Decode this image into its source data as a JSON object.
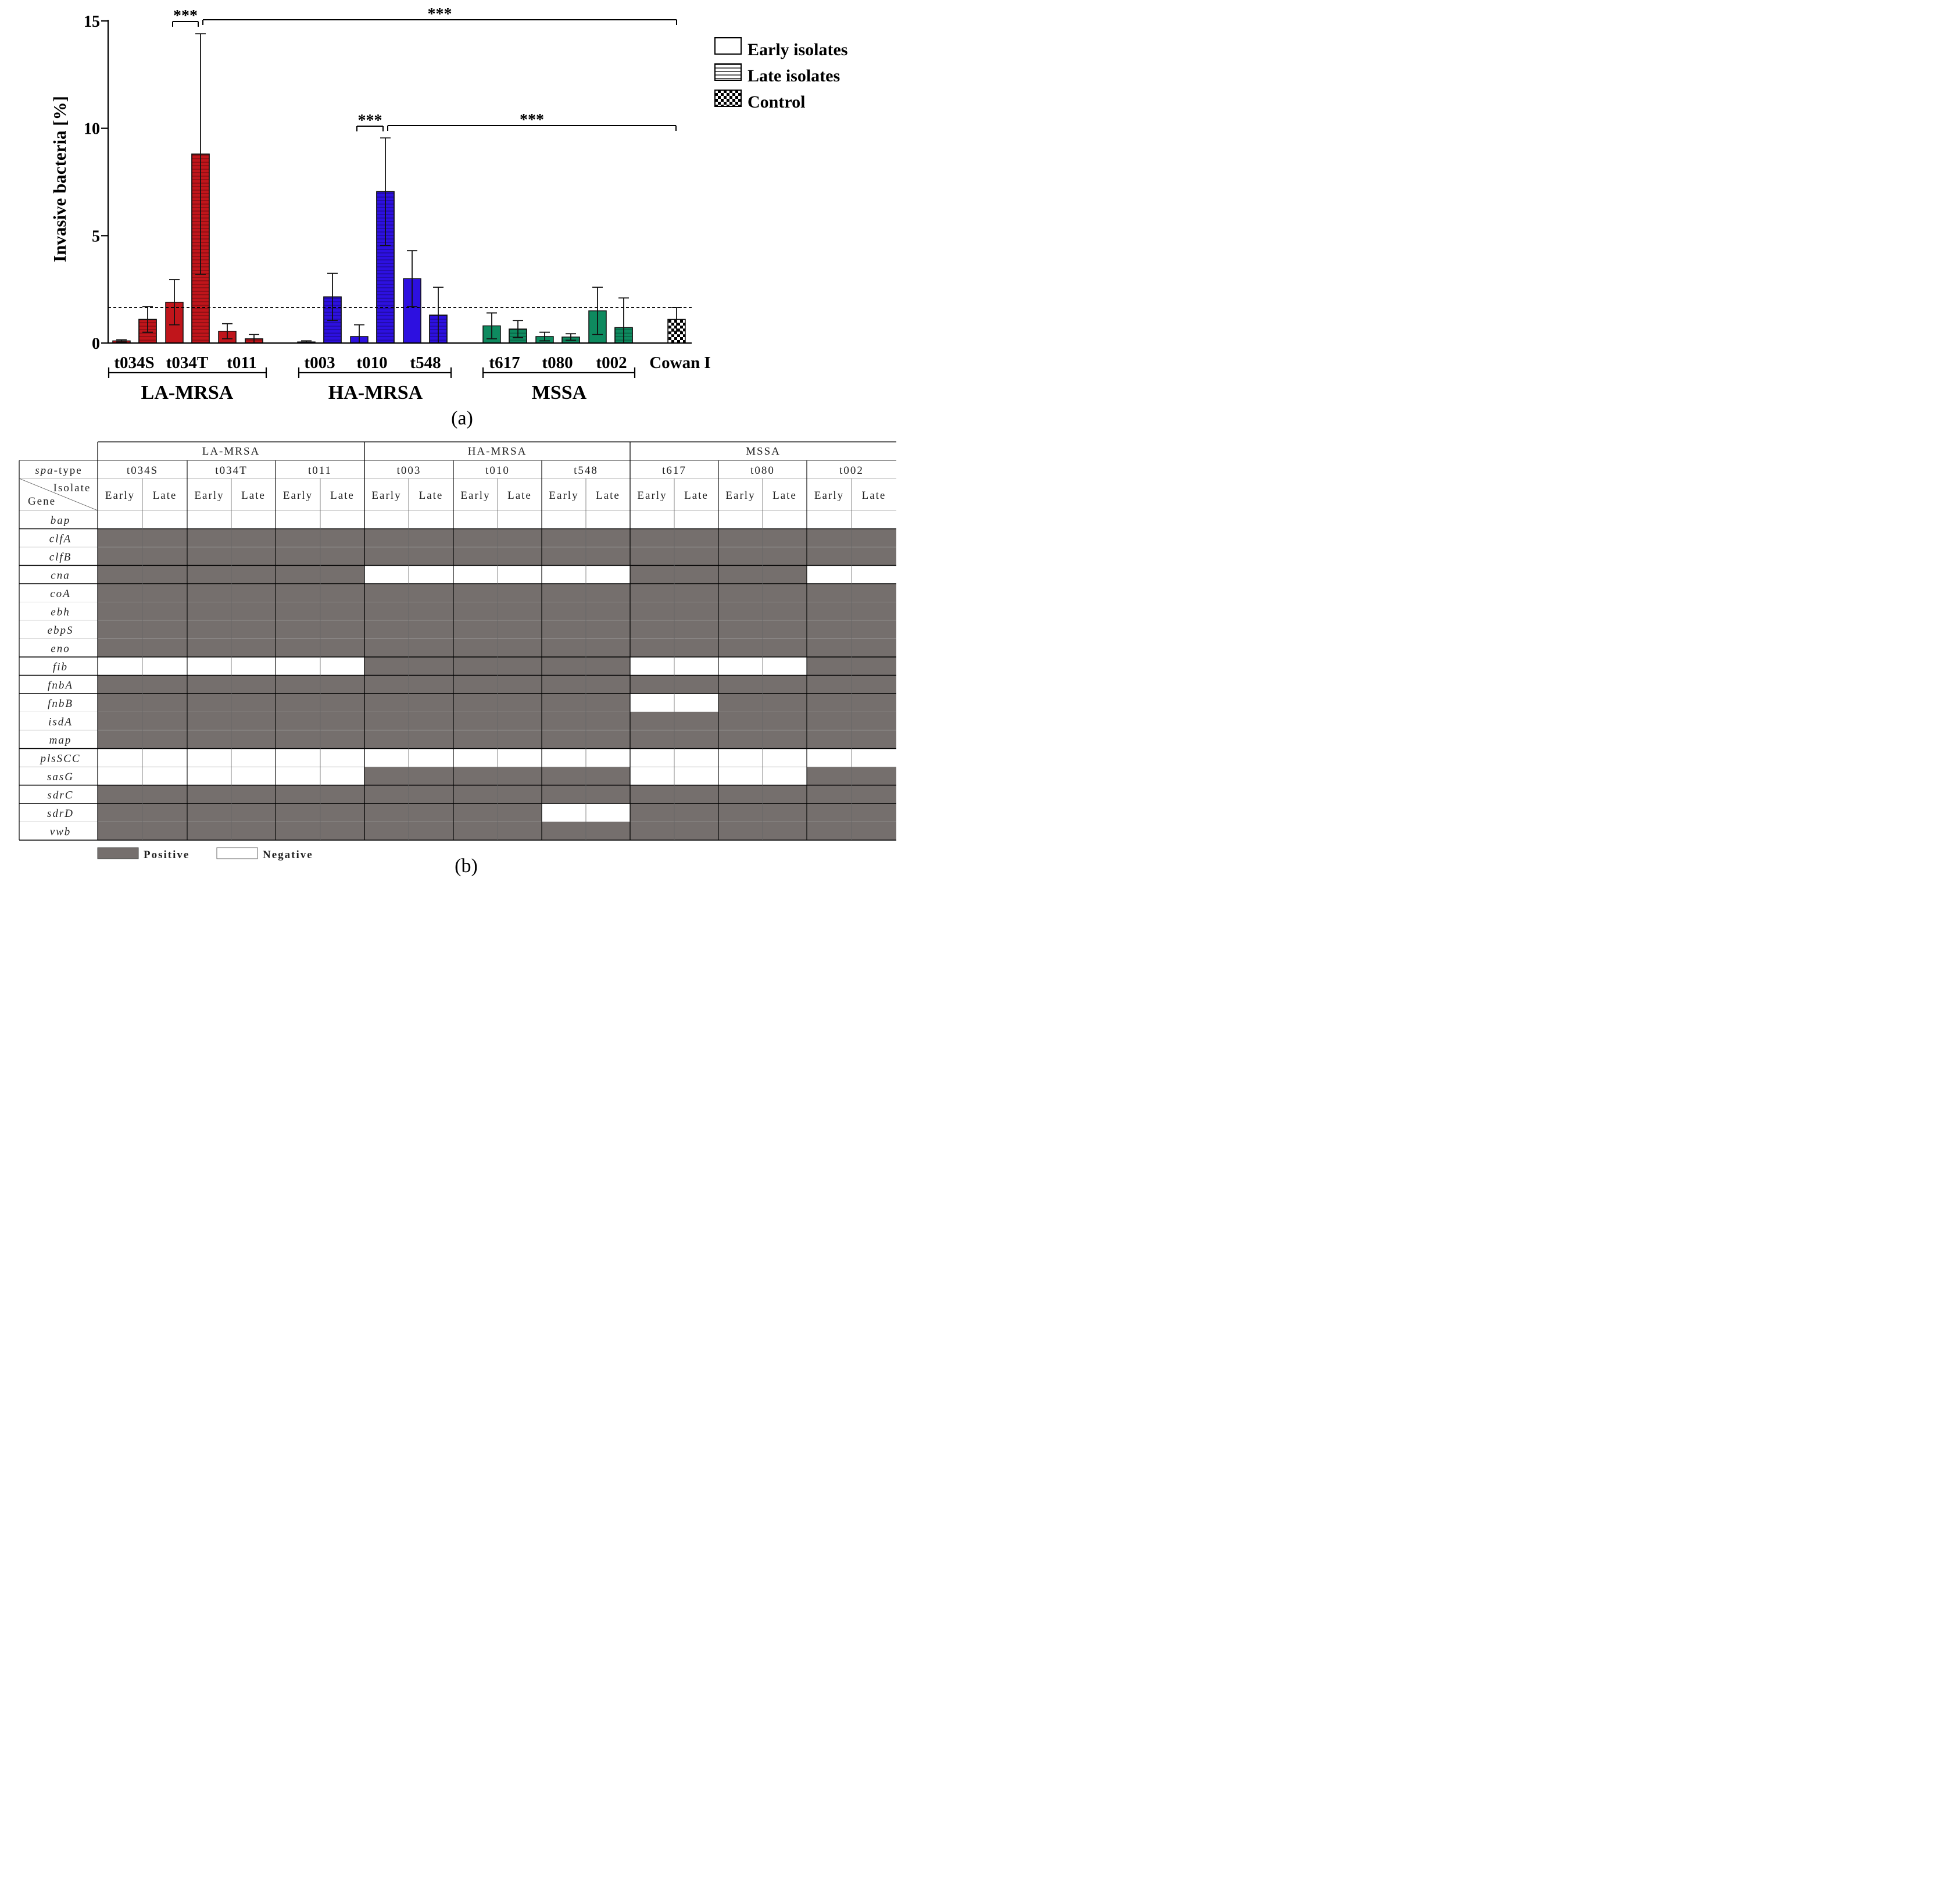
{
  "panel_a": {
    "label": "(a)",
    "ylabel": "Invasive bacteria [%]",
    "yticks": [
      "0",
      "5",
      "10",
      "15"
    ],
    "significance_label": "***",
    "legend": [
      {
        "label": "Early isolates",
        "pattern": "none"
      },
      {
        "label": "Late isolates",
        "pattern": "horizontal-lines"
      },
      {
        "label": "Control",
        "pattern": "checker"
      }
    ],
    "categories": [
      "t034S",
      "t034T",
      "t011",
      "t003",
      "t010",
      "t548",
      "t617",
      "t080",
      "t002",
      "Cowan I"
    ],
    "groups": [
      {
        "name": "LA-MRSA",
        "categories": [
          "t034S",
          "t034T",
          "t011"
        ]
      },
      {
        "name": "HA-MRSA",
        "categories": [
          "t003",
          "t010",
          "t548"
        ]
      },
      {
        "name": "MSSA",
        "categories": [
          "t617",
          "t080",
          "t002"
        ]
      }
    ],
    "colors": {
      "LA-MRSA": "#c0151b",
      "HA-MRSA": "#2d10e0",
      "MSSA": "#0e8a5f",
      "Control": "#ffffff"
    }
  },
  "panel_b": {
    "label": "(b)",
    "groups": [
      "LA-MRSA",
      "HA-MRSA",
      "MSSA"
    ],
    "spa_header": "spa-type",
    "spa_emphasis": "spa",
    "isolate_header": "Isolate",
    "gene_header": "Gene",
    "spa_types": [
      "t034S",
      "t034T",
      "t011",
      "t003",
      "t010",
      "t548",
      "t617",
      "t080",
      "t002"
    ],
    "isolate_labels": [
      "Early",
      "Late"
    ],
    "genes": [
      "bap",
      "clfA",
      "clfB",
      "cna",
      "coA",
      "ebh",
      "ebpS",
      "eno",
      "fib",
      "fnbA",
      "fnbB",
      "isdA",
      "map",
      "plsSCC",
      "sasG",
      "sdrC",
      "sdrD",
      "vwb"
    ],
    "presence": [
      [
        0,
        0,
        0,
        0,
        0,
        0,
        0,
        0,
        0,
        0,
        0,
        0,
        0,
        0,
        0,
        0,
        0,
        0
      ],
      [
        1,
        1,
        1,
        1,
        1,
        1,
        1,
        1,
        1,
        1,
        1,
        1,
        1,
        1,
        1,
        1,
        1,
        1
      ],
      [
        1,
        1,
        1,
        1,
        1,
        1,
        1,
        1,
        1,
        1,
        1,
        1,
        1,
        1,
        1,
        1,
        1,
        1
      ],
      [
        1,
        1,
        1,
        1,
        1,
        1,
        0,
        0,
        0,
        0,
        0,
        0,
        1,
        1,
        1,
        1,
        0,
        0
      ],
      [
        1,
        1,
        1,
        1,
        1,
        1,
        1,
        1,
        1,
        1,
        1,
        1,
        1,
        1,
        1,
        1,
        1,
        1
      ],
      [
        1,
        1,
        1,
        1,
        1,
        1,
        1,
        1,
        1,
        1,
        1,
        1,
        1,
        1,
        1,
        1,
        1,
        1
      ],
      [
        1,
        1,
        1,
        1,
        1,
        1,
        1,
        1,
        1,
        1,
        1,
        1,
        1,
        1,
        1,
        1,
        1,
        1
      ],
      [
        1,
        1,
        1,
        1,
        1,
        1,
        1,
        1,
        1,
        1,
        1,
        1,
        1,
        1,
        1,
        1,
        1,
        1
      ],
      [
        0,
        0,
        0,
        0,
        0,
        0,
        1,
        1,
        1,
        1,
        1,
        1,
        0,
        0,
        0,
        0,
        1,
        1
      ],
      [
        1,
        1,
        1,
        1,
        1,
        1,
        1,
        1,
        1,
        1,
        1,
        1,
        1,
        1,
        1,
        1,
        1,
        1
      ],
      [
        1,
        1,
        1,
        1,
        1,
        1,
        1,
        1,
        1,
        1,
        1,
        1,
        0,
        0,
        1,
        1,
        1,
        1
      ],
      [
        1,
        1,
        1,
        1,
        1,
        1,
        1,
        1,
        1,
        1,
        1,
        1,
        1,
        1,
        1,
        1,
        1,
        1
      ],
      [
        1,
        1,
        1,
        1,
        1,
        1,
        1,
        1,
        1,
        1,
        1,
        1,
        1,
        1,
        1,
        1,
        1,
        1
      ],
      [
        0,
        0,
        0,
        0,
        0,
        0,
        0,
        0,
        0,
        0,
        0,
        0,
        0,
        0,
        0,
        0,
        0,
        0
      ],
      [
        0,
        0,
        0,
        0,
        0,
        0,
        1,
        1,
        1,
        1,
        1,
        1,
        0,
        0,
        0,
        0,
        1,
        1
      ],
      [
        1,
        1,
        1,
        1,
        1,
        1,
        1,
        1,
        1,
        1,
        1,
        1,
        1,
        1,
        1,
        1,
        1,
        1
      ],
      [
        1,
        1,
        1,
        1,
        1,
        1,
        1,
        1,
        1,
        1,
        0,
        0,
        1,
        1,
        1,
        1,
        1,
        1
      ],
      [
        1,
        1,
        1,
        1,
        1,
        1,
        1,
        1,
        1,
        1,
        1,
        1,
        1,
        1,
        1,
        1,
        1,
        1
      ]
    ],
    "legend_positive": "Positive",
    "legend_negative": "Negative",
    "positive_color": "#756f6d",
    "negative_color": "#ffffff"
  },
  "chart_data": {
    "type": "bar",
    "title": "",
    "xlabel": "",
    "ylabel": "Invasive bacteria [%]",
    "ylim": [
      0,
      15
    ],
    "yticks": [
      0,
      5,
      10,
      15
    ],
    "grid": false,
    "legend_position": "top-right",
    "categories": [
      "t034S",
      "t034T",
      "t011",
      "t003",
      "t010",
      "t548",
      "t617",
      "t080",
      "t002",
      "Cowan I"
    ],
    "series": [
      {
        "name": "Early isolates",
        "values": [
          0.1,
          1.9,
          0.55,
          0.05,
          0.3,
          3.0,
          0.8,
          0.3,
          1.5,
          null
        ],
        "errors": [
          0.05,
          1.05,
          0.35,
          0.05,
          0.55,
          1.3,
          0.6,
          0.2,
          1.1,
          null
        ]
      },
      {
        "name": "Late isolates",
        "values": [
          1.1,
          8.8,
          0.2,
          2.15,
          7.05,
          1.3,
          0.65,
          0.28,
          0.72,
          null
        ],
        "errors": [
          0.6,
          5.6,
          0.2,
          1.1,
          2.5,
          1.3,
          0.4,
          0.15,
          1.38,
          null
        ]
      },
      {
        "name": "Control",
        "values": [
          null,
          null,
          null,
          null,
          null,
          null,
          null,
          null,
          null,
          1.1
        ],
        "errors": [
          null,
          null,
          null,
          null,
          null,
          null,
          null,
          null,
          null,
          0.55
        ]
      }
    ],
    "reference_line": 1.65,
    "significance": [
      {
        "from": "t034T early",
        "to": "t034T late",
        "label": "***"
      },
      {
        "from": "t034T late",
        "to": "Cowan I",
        "label": "***"
      },
      {
        "from": "t010 early",
        "to": "t010 late",
        "label": "***"
      },
      {
        "from": "t010 late",
        "to": "Cowan I",
        "label": "***"
      }
    ]
  }
}
